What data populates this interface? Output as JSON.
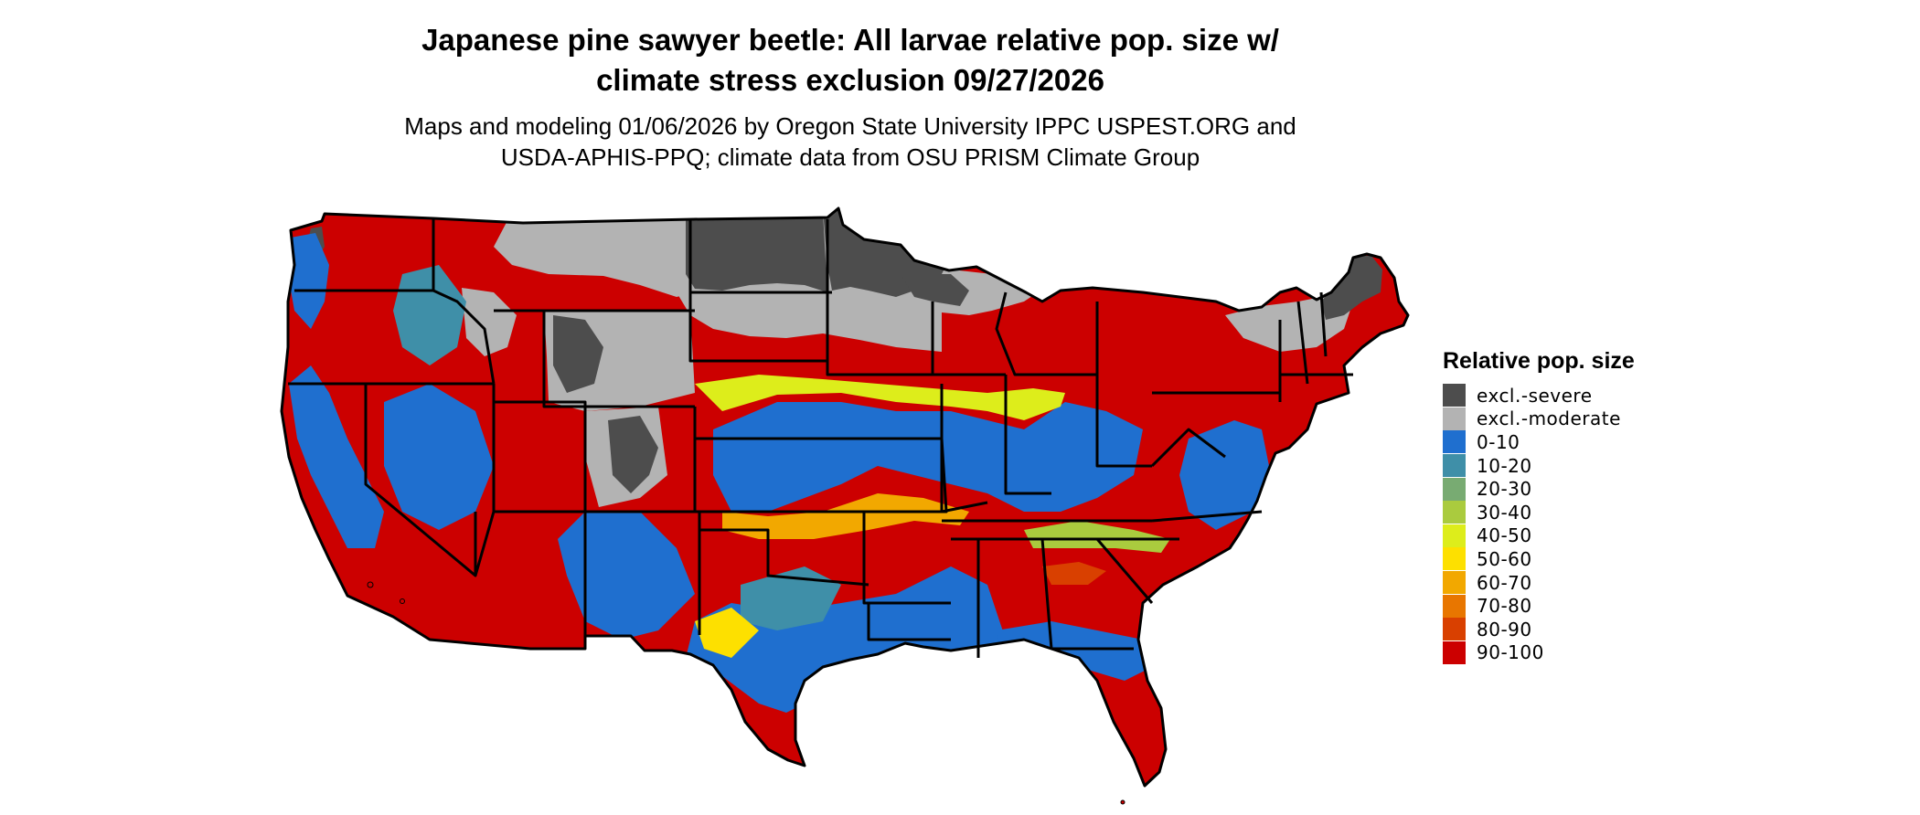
{
  "title_line1": "Japanese pine sawyer beetle: All larvae relative pop. size w/",
  "title_line2": "climate stress exclusion 09/27/2026",
  "subtitle_line1": "Maps and modeling 01/06/2026 by Oregon State University IPPC USPEST.ORG and",
  "subtitle_line2": "USDA-APHIS-PPQ; climate data from OSU PRISM Climate Group",
  "legend": {
    "title": "Relative pop. size",
    "items": [
      {
        "label": "excl.-severe",
        "color": "#4d4d4d"
      },
      {
        "label": "excl.-moderate",
        "color": "#b3b3b3"
      },
      {
        "label": "0-10",
        "color": "#1f6fcf"
      },
      {
        "label": "10-20",
        "color": "#3f8fa8"
      },
      {
        "label": "20-30",
        "color": "#78ab72"
      },
      {
        "label": "30-40",
        "color": "#aacb3e"
      },
      {
        "label": "40-50",
        "color": "#dded1b"
      },
      {
        "label": "50-60",
        "color": "#fde000"
      },
      {
        "label": "60-70",
        "color": "#f2a800"
      },
      {
        "label": "70-80",
        "color": "#e87600"
      },
      {
        "label": "80-90",
        "color": "#d94000"
      },
      {
        "label": "90-100",
        "color": "#cc0000"
      }
    ]
  },
  "map": {
    "region": "Contiguous United States",
    "boundaries": "state outlines"
  }
}
